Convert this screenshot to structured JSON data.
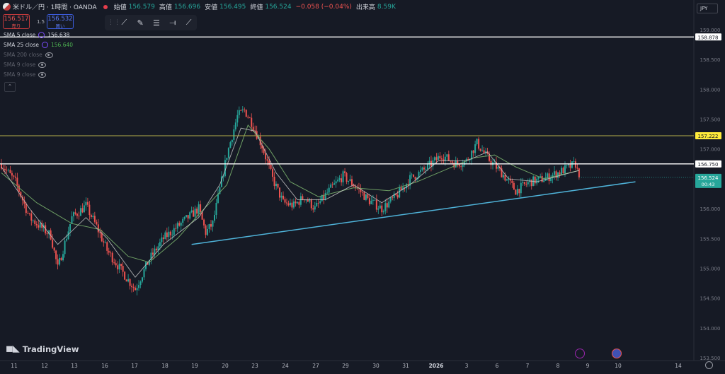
{
  "header": {
    "symbol": "米ドル／円 · 1時間 · OANDA",
    "open_label": "始値",
    "open_value": "156.579",
    "high_label": "高値",
    "high_value": "156.696",
    "low_label": "安値",
    "low_value": "156.495",
    "close_label": "終値",
    "close_value": "156.524",
    "change": "−0.058 (−0.04%)",
    "volume_label": "出来高",
    "volume_value": "8.59K"
  },
  "trade": {
    "sell_price": "156.517",
    "sell_label": "売り",
    "spread": "1.5",
    "buy_price": "156.532",
    "buy_label": "買い"
  },
  "indicators": [
    {
      "label": "SMA 5 close",
      "value": "156.638",
      "active": true,
      "color": "#d1d4dc"
    },
    {
      "label": "SMA 25 close",
      "value": "156.640",
      "active": true,
      "color": "#4caf50"
    },
    {
      "label": "SMA 200 close",
      "value": "",
      "active": false
    },
    {
      "label": "SMA 9 close",
      "value": "",
      "active": false
    },
    {
      "label": "SMA 9 close",
      "value": "",
      "active": false
    }
  ],
  "currency": "JPY",
  "watermark": "TradingView",
  "chart_data": {
    "type": "candlestick",
    "ylim": [
      153.5,
      159.2
    ],
    "y_ticks": [
      "159.000",
      "158.500",
      "158.000",
      "157.500",
      "157.000",
      "156.500",
      "156.000",
      "155.500",
      "155.000",
      "154.500",
      "154.000",
      "153.500"
    ],
    "x_tick_labels": [
      "11",
      "12",
      "13",
      "16",
      "17",
      "18",
      "19",
      "20",
      "23",
      "24",
      "27",
      "29",
      "30",
      "31",
      "2026",
      "3",
      "6",
      "7",
      "8",
      "9",
      "10",
      "14"
    ],
    "price_path": [
      [
        0,
        156.75
      ],
      [
        2,
        156.45
      ],
      [
        4,
        155.85
      ],
      [
        7,
        155.55
      ],
      [
        8,
        155.0
      ],
      [
        10,
        155.85
      ],
      [
        12,
        156.05
      ],
      [
        13.5,
        155.7
      ],
      [
        15,
        155.3
      ],
      [
        16.5,
        155.05
      ],
      [
        18,
        154.8
      ],
      [
        19,
        154.65
      ],
      [
        21,
        155.15
      ],
      [
        23,
        155.5
      ],
      [
        25.5,
        155.75
      ],
      [
        28,
        156.0
      ],
      [
        29,
        155.6
      ],
      [
        30,
        155.75
      ],
      [
        32,
        156.9
      ],
      [
        33.5,
        157.55
      ],
      [
        34.5,
        157.65
      ],
      [
        35.5,
        157.45
      ],
      [
        37,
        157.05
      ],
      [
        38.5,
        156.5
      ],
      [
        40,
        156.1
      ],
      [
        41.5,
        156.05
      ],
      [
        43,
        156.2
      ],
      [
        44.5,
        156.0
      ],
      [
        46.5,
        156.3
      ],
      [
        48.5,
        156.55
      ],
      [
        50.5,
        156.35
      ],
      [
        52,
        156.15
      ],
      [
        54,
        156.0
      ],
      [
        56,
        156.2
      ],
      [
        58,
        156.5
      ],
      [
        60,
        156.65
      ],
      [
        62.5,
        156.9
      ],
      [
        64.5,
        156.75
      ],
      [
        66,
        156.8
      ],
      [
        67.5,
        157.1
      ],
      [
        69,
        156.85
      ],
      [
        71,
        156.6
      ],
      [
        73,
        156.3
      ],
      [
        75,
        156.45
      ],
      [
        77,
        156.5
      ],
      [
        79,
        156.6
      ],
      [
        81.5,
        156.75
      ],
      [
        82,
        156.52
      ]
    ],
    "sma_fast": [
      [
        0,
        156.7
      ],
      [
        4,
        156.0
      ],
      [
        8,
        155.4
      ],
      [
        12,
        155.85
      ],
      [
        15,
        155.5
      ],
      [
        19,
        154.85
      ],
      [
        23,
        155.4
      ],
      [
        28,
        155.85
      ],
      [
        31,
        156.4
      ],
      [
        34,
        157.35
      ],
      [
        36,
        157.3
      ],
      [
        39,
        156.6
      ],
      [
        42,
        156.15
      ],
      [
        46,
        156.15
      ],
      [
        50,
        156.4
      ],
      [
        54,
        156.1
      ],
      [
        58,
        156.4
      ],
      [
        62,
        156.8
      ],
      [
        66,
        156.8
      ],
      [
        69,
        156.95
      ],
      [
        72,
        156.5
      ],
      [
        76,
        156.45
      ],
      [
        82,
        156.64
      ]
    ],
    "sma_slow": [
      [
        0,
        156.6
      ],
      [
        5,
        156.1
      ],
      [
        10,
        155.75
      ],
      [
        14,
        155.65
      ],
      [
        18,
        155.2
      ],
      [
        21,
        155.1
      ],
      [
        25,
        155.5
      ],
      [
        28,
        155.9
      ],
      [
        32,
        156.4
      ],
      [
        35,
        157.4
      ],
      [
        38,
        157.0
      ],
      [
        41,
        156.45
      ],
      [
        45,
        156.2
      ],
      [
        50,
        156.35
      ],
      [
        55,
        156.3
      ],
      [
        59,
        156.45
      ],
      [
        63,
        156.65
      ],
      [
        67,
        156.85
      ],
      [
        70,
        156.9
      ],
      [
        73,
        156.7
      ],
      [
        77,
        156.5
      ],
      [
        82,
        156.64
      ]
    ],
    "horizontal_lines": [
      {
        "value": 158.878,
        "label": "158.878",
        "color": "#ffffff"
      },
      {
        "value": 157.222,
        "label": "157.222",
        "color": "#b5b04a"
      },
      {
        "value": 156.75,
        "label": "156.750",
        "color": "#ffffff"
      }
    ],
    "trendline": {
      "from": [
        27,
        155.4
      ],
      "to": [
        90,
        156.45
      ],
      "color": "#4fb3d9"
    },
    "last_price": {
      "value": 156.524,
      "label": "156.524",
      "countdown": "00:43",
      "color": "#26a69a"
    }
  }
}
